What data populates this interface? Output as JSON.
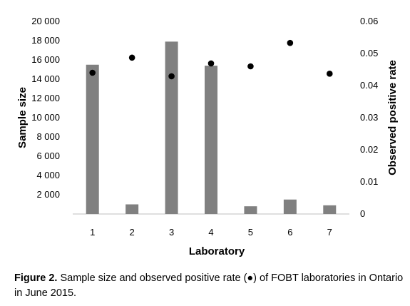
{
  "chart_data": {
    "type": "bar",
    "categories": [
      "1",
      "2",
      "3",
      "4",
      "5",
      "6",
      "7"
    ],
    "series": [
      {
        "values": [
          15500,
          1000,
          17900,
          15400,
          800,
          1500,
          900
        ],
        "axis": "left",
        "kind": "bar",
        "color": "#808080"
      },
      {
        "values": [
          0.044,
          0.0487,
          0.0429,
          0.0469,
          0.046,
          0.0533,
          0.0437
        ],
        "axis": "right",
        "kind": "scatter",
        "color": "#000000"
      }
    ],
    "xlabel": "Laboratory",
    "ylabel": "Sample size",
    "y2label": "Observed positive rate",
    "ylim": [
      0,
      20000
    ],
    "y2lim": [
      0,
      0.06
    ],
    "yticks": [
      "2 000",
      "4 000",
      "6 000",
      "8 000",
      "10 000",
      "12 000",
      "14 000",
      "16 000",
      "18 000",
      "20 000"
    ],
    "y2ticks": [
      "0",
      "0.01",
      "0.02",
      "0.03",
      "0.04",
      "0.05",
      "0.06"
    ],
    "grid": false,
    "legend": "none"
  },
  "caption": {
    "label": "Figure 2.",
    "text": "Sample size and observed positive rate (●) of FOBT laboratories in Ontario in June 2015."
  }
}
